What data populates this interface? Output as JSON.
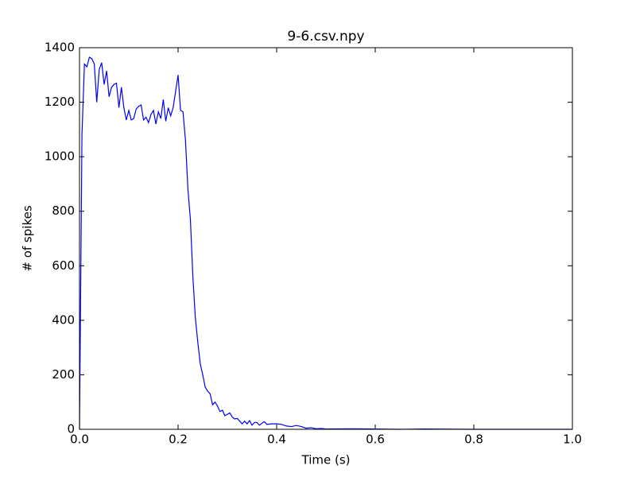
{
  "chart_data": {
    "type": "line",
    "title": "9-6.csv.npy",
    "x_label": "Time (s)",
    "y_label": "# of spikes",
    "x": [
      0,
      0.005,
      0.01,
      0.015,
      0.02,
      0.025,
      0.03,
      0.035,
      0.04,
      0.045,
      0.05,
      0.055,
      0.06,
      0.065,
      0.07,
      0.075,
      0.08,
      0.085,
      0.09,
      0.095,
      0.1,
      0.105,
      0.11,
      0.115,
      0.12,
      0.125,
      0.13,
      0.135,
      0.14,
      0.145,
      0.15,
      0.155,
      0.16,
      0.165,
      0.17,
      0.175,
      0.18,
      0.185,
      0.19,
      0.195,
      0.2,
      0.205,
      0.21,
      0.215,
      0.22,
      0.225,
      0.23,
      0.235,
      0.24,
      0.245,
      0.25,
      0.255,
      0.26,
      0.265,
      0.27,
      0.275,
      0.28,
      0.285,
      0.29,
      0.295,
      0.3,
      0.305,
      0.31,
      0.315,
      0.32,
      0.325,
      0.33,
      0.335,
      0.34,
      0.345,
      0.35,
      0.355,
      0.36,
      0.365,
      0.37,
      0.375,
      0.38,
      0.39,
      0.4,
      0.41,
      0.42,
      0.43,
      0.44,
      0.45,
      0.46,
      0.47,
      0.48,
      0.49,
      0.5,
      0.55,
      0.6,
      0.65,
      0.7,
      0.8,
      0.9,
      1.0
    ],
    "series": [
      {
        "name": "spikes",
        "color": "#0000ff",
        "values": [
          0,
          1080,
          1340,
          1330,
          1365,
          1360,
          1340,
          1200,
          1320,
          1345,
          1265,
          1315,
          1220,
          1255,
          1265,
          1270,
          1180,
          1255,
          1180,
          1135,
          1170,
          1135,
          1140,
          1175,
          1185,
          1190,
          1135,
          1145,
          1125,
          1155,
          1170,
          1120,
          1165,
          1140,
          1210,
          1130,
          1180,
          1150,
          1180,
          1240,
          1300,
          1170,
          1165,
          1060,
          880,
          770,
          560,
          410,
          320,
          240,
          200,
          155,
          140,
          130,
          90,
          100,
          85,
          65,
          70,
          50,
          55,
          60,
          45,
          38,
          40,
          30,
          20,
          30,
          20,
          32,
          15,
          25,
          25,
          15,
          22,
          28,
          18,
          20,
          20,
          18,
          12,
          10,
          14,
          10,
          4,
          6,
          2,
          3,
          1,
          2,
          1,
          0,
          1,
          0,
          0,
          0
        ]
      }
    ],
    "xlim": [
      0,
      1
    ],
    "ylim": [
      0,
      1400
    ],
    "xticks": [
      {
        "value": 0,
        "label": "0.0"
      },
      0.2,
      0.4,
      0.6,
      0.8,
      {
        "value": 1,
        "label": "1.0"
      }
    ],
    "yticks": [
      0,
      200,
      400,
      600,
      800,
      1000,
      1200,
      1400
    ]
  }
}
